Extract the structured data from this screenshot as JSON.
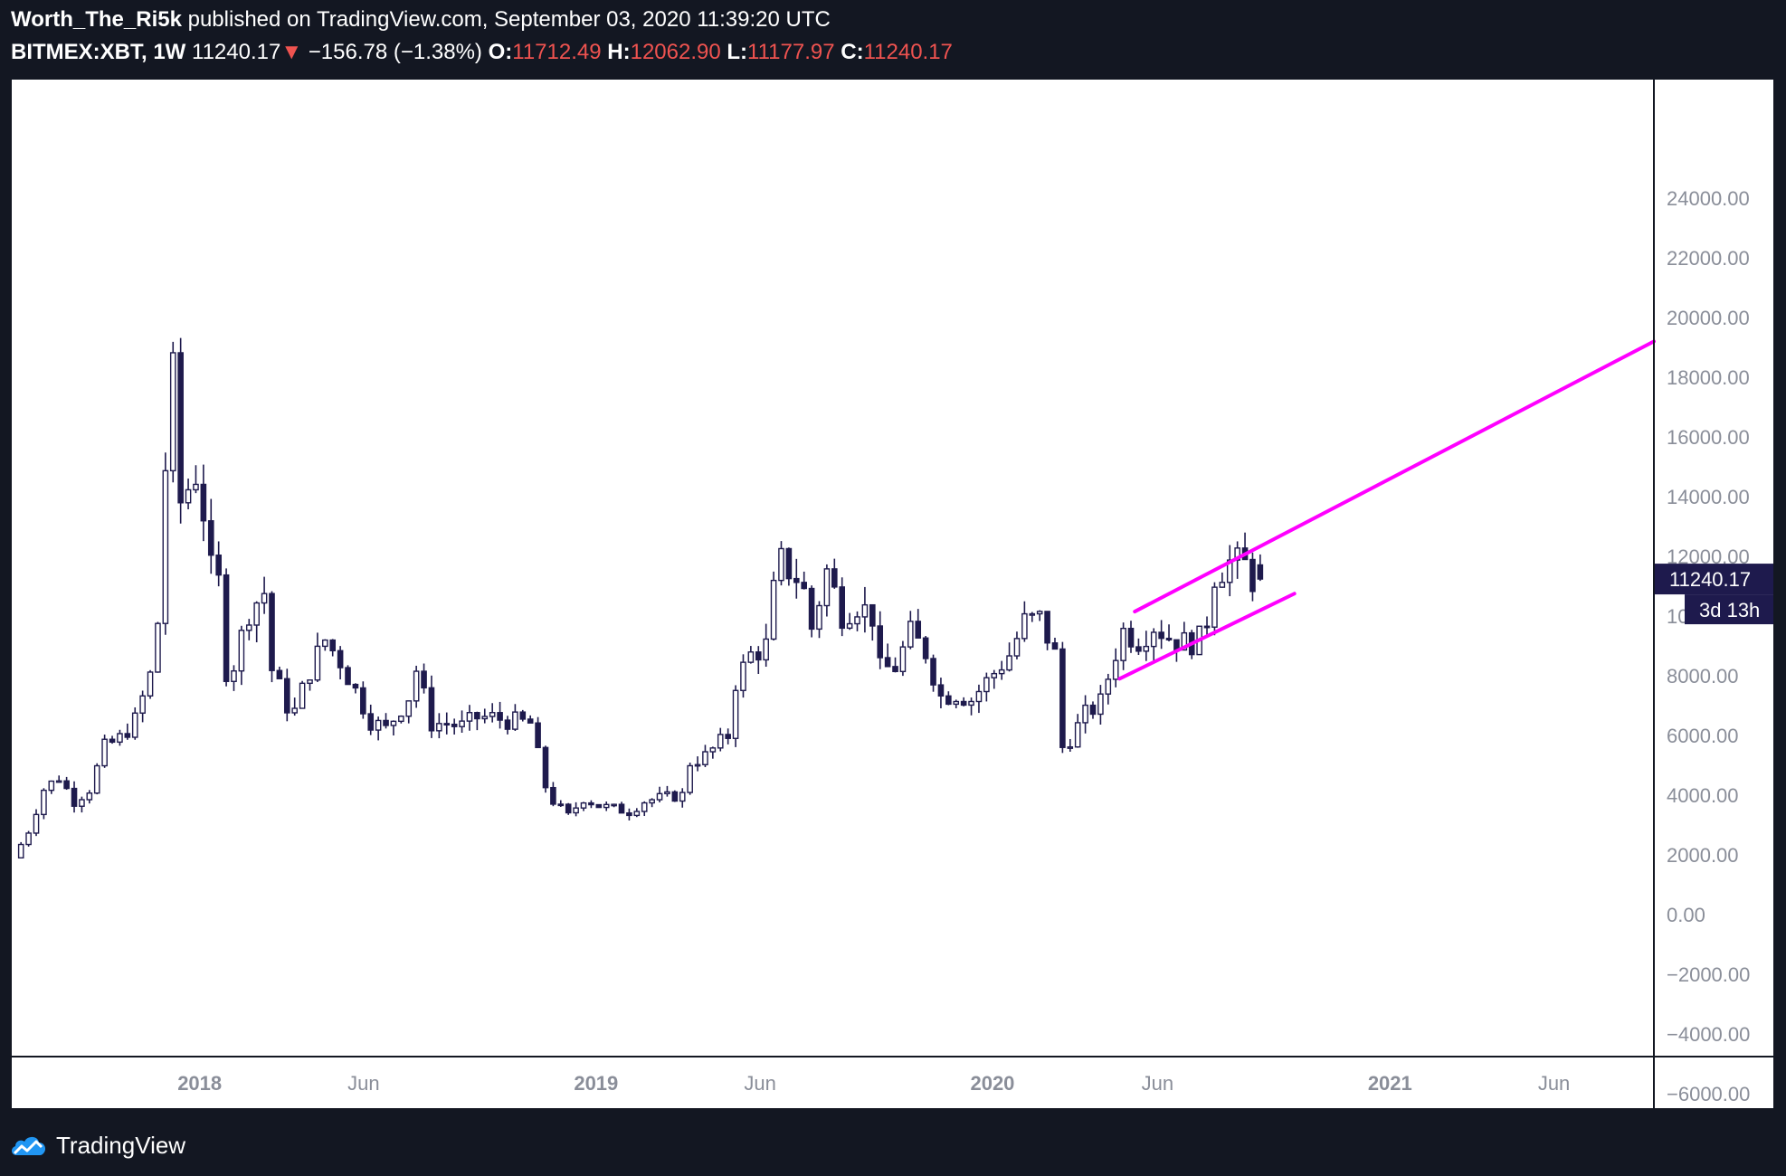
{
  "header": {
    "author": "Worth_The_Ri5k",
    "published": "published on TradingView.com, September 03, 2020 11:39:20 UTC",
    "symbol": "BITMEX:XBT, 1W",
    "last": "11240.17",
    "change_arrow": "▼",
    "change": "−156.78 (−1.38%)",
    "open_label": "O:",
    "open": "11712.49",
    "high_label": "H:",
    "high": "12062.90",
    "low_label": "L:",
    "low": "11177.97",
    "close_label": "C:",
    "close": "11240.17"
  },
  "footer": {
    "brand": "TradingView",
    "logo_icon": "tradingview-cloud-icon"
  },
  "colors": {
    "background": "#131722",
    "candle": "#1e1a4d",
    "trendline": "#ff00ff",
    "price_tag": "#1e1a4d",
    "change_red": "#ef5350"
  },
  "chart_data": {
    "type": "candlestick",
    "symbol": "BITMEX:XBT",
    "interval": "1W",
    "ylim": [
      -7000,
      25000
    ],
    "y_ticks": [
      "24000.00",
      "22000.00",
      "20000.00",
      "18000.00",
      "16000.00",
      "14000.00",
      "12000.00",
      "10000.00",
      "8000.00",
      "6000.00",
      "4000.00",
      "2000.00",
      "0.00",
      "−2000.00",
      "−4000.00",
      "−6000.00"
    ],
    "x_ticks": [
      {
        "label": "2018",
        "date": "2018-01-01",
        "bold": true
      },
      {
        "label": "Jun",
        "date": "2018-06-01",
        "bold": false
      },
      {
        "label": "2019",
        "date": "2019-01-01",
        "bold": true
      },
      {
        "label": "Jun",
        "date": "2019-06-01",
        "bold": false
      },
      {
        "label": "2020",
        "date": "2020-01-01",
        "bold": true
      },
      {
        "label": "Jun",
        "date": "2020-06-01",
        "bold": false
      },
      {
        "label": "2021",
        "date": "2021-01-01",
        "bold": true
      },
      {
        "label": "Jun",
        "date": "2021-06-01",
        "bold": false
      }
    ],
    "price_label": "11240.17",
    "countdown_label": "3d 13h",
    "anchors": [
      [
        "2017-07-17",
        1900
      ],
      [
        "2017-07-31",
        2800
      ],
      [
        "2017-08-14",
        4200
      ],
      [
        "2017-08-28",
        4600
      ],
      [
        "2017-09-11",
        3800
      ],
      [
        "2017-09-25",
        4200
      ],
      [
        "2017-10-09",
        5600
      ],
      [
        "2017-10-23",
        5900
      ],
      [
        "2017-11-06",
        6500
      ],
      [
        "2017-11-20",
        8000
      ],
      [
        "2017-11-27",
        9800
      ],
      [
        "2017-12-04",
        15000
      ],
      [
        "2017-12-11",
        18000
      ],
      [
        "2017-12-18",
        13800
      ],
      [
        "2018-01-01",
        14800
      ],
      [
        "2018-01-08",
        13500
      ],
      [
        "2018-01-15",
        11500
      ],
      [
        "2018-01-22",
        11100
      ],
      [
        "2018-01-29",
        8200
      ],
      [
        "2018-02-05",
        8400
      ],
      [
        "2018-02-19",
        10200
      ],
      [
        "2018-03-05",
        10800
      ],
      [
        "2018-03-12",
        8200
      ],
      [
        "2018-03-26",
        7000
      ],
      [
        "2018-04-02",
        6800
      ],
      [
        "2018-04-16",
        8200
      ],
      [
        "2018-04-30",
        9200
      ],
      [
        "2018-05-14",
        8500
      ],
      [
        "2018-05-28",
        7500
      ],
      [
        "2018-06-11",
        6500
      ],
      [
        "2018-06-25",
        6200
      ],
      [
        "2018-07-16",
        7300
      ],
      [
        "2018-07-23",
        8200
      ],
      [
        "2018-08-06",
        6400
      ],
      [
        "2018-08-20",
        6400
      ],
      [
        "2018-09-03",
        6300
      ],
      [
        "2018-09-17",
        6600
      ],
      [
        "2018-10-01",
        6600
      ],
      [
        "2018-10-15",
        6500
      ],
      [
        "2018-11-05",
        6400
      ],
      [
        "2018-11-19",
        4300
      ],
      [
        "2018-11-26",
        3800
      ],
      [
        "2018-12-10",
        3300
      ],
      [
        "2018-12-24",
        3900
      ],
      [
        "2019-01-07",
        3650
      ],
      [
        "2019-01-21",
        3550
      ],
      [
        "2019-02-04",
        3450
      ],
      [
        "2019-02-18",
        3800
      ],
      [
        "2019-03-04",
        3900
      ],
      [
        "2019-03-25",
        4000
      ],
      [
        "2019-04-01",
        5100
      ],
      [
        "2019-04-15",
        5300
      ],
      [
        "2019-05-06",
        6000
      ],
      [
        "2019-05-13",
        7800
      ],
      [
        "2019-05-27",
        8700
      ],
      [
        "2019-06-10",
        9000
      ],
      [
        "2019-06-17",
        10800
      ],
      [
        "2019-06-24",
        11800
      ],
      [
        "2019-07-08",
        11300
      ],
      [
        "2019-07-15",
        10800
      ],
      [
        "2019-07-22",
        9600
      ],
      [
        "2019-08-05",
        11500
      ],
      [
        "2019-08-19",
        10100
      ],
      [
        "2019-09-02",
        10400
      ],
      [
        "2019-09-16",
        10000
      ],
      [
        "2019-09-23",
        8200
      ],
      [
        "2019-10-07",
        8300
      ],
      [
        "2019-10-21",
        9400
      ],
      [
        "2019-11-04",
        8800
      ],
      [
        "2019-11-18",
        7300
      ],
      [
        "2019-12-02",
        7400
      ],
      [
        "2019-12-16",
        7200
      ],
      [
        "2020-01-06",
        8100
      ],
      [
        "2020-01-20",
        8700
      ],
      [
        "2020-02-03",
        9800
      ],
      [
        "2020-02-17",
        9900
      ],
      [
        "2020-03-02",
        8700
      ],
      [
        "2020-03-09",
        5600
      ],
      [
        "2020-03-16",
        5900
      ],
      [
        "2020-03-30",
        6700
      ],
      [
        "2020-04-13",
        7100
      ],
      [
        "2020-04-27",
        8800
      ],
      [
        "2020-05-04",
        9500
      ],
      [
        "2020-05-18",
        9200
      ],
      [
        "2020-06-01",
        9700
      ],
      [
        "2020-06-15",
        9300
      ],
      [
        "2020-06-29",
        9100
      ],
      [
        "2020-07-13",
        9200
      ],
      [
        "2020-07-20",
        9900
      ],
      [
        "2020-07-27",
        11400
      ],
      [
        "2020-08-10",
        11800
      ],
      [
        "2020-08-24",
        11700
      ],
      [
        "2020-08-31",
        11240.17
      ]
    ],
    "last_candle": {
      "date": "2020-08-31",
      "open": 11712.49,
      "high": 12062.9,
      "low": 11177.97,
      "close": 11240.17
    },
    "trendlines": [
      {
        "name": "upper",
        "from": {
          "date": "2020-05-11",
          "value": 10150
        },
        "to": {
          "date": "2021-09-01",
          "value": 19200
        }
      },
      {
        "name": "lower",
        "from": {
          "date": "2020-04-27",
          "value": 7900
        },
        "to": {
          "date": "2020-10-05",
          "value": 10750
        }
      }
    ]
  }
}
